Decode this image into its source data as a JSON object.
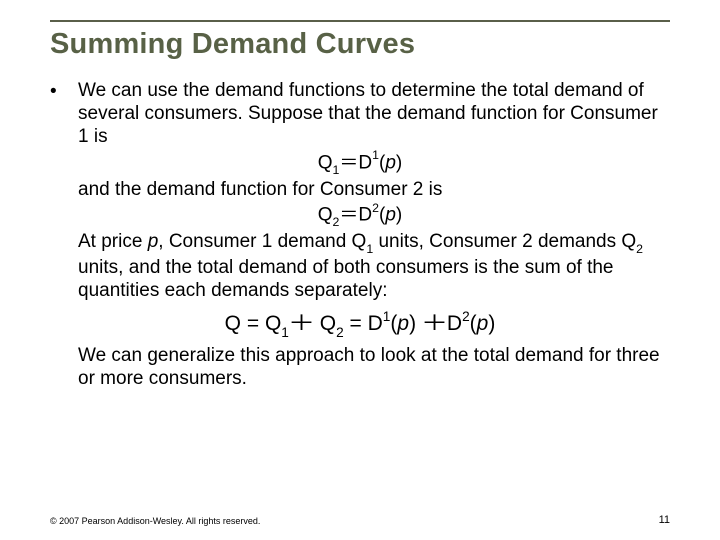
{
  "title": "Summing Demand Curves",
  "colors": {
    "title_color": "#586146",
    "rule_color": "#5a5f4a",
    "text_color": "#000000",
    "background": "#ffffff"
  },
  "typography": {
    "title_fontsize_pt": 22,
    "body_fontsize_pt": 14,
    "footer_fontsize_pt": 7
  },
  "bullet": "•",
  "p1": "We can use the demand functions to determine the total demand of several consumers. Suppose that the demand function for Consumer 1 is",
  "eq1": {
    "lhs_sym": "Q",
    "lhs_sub": "1",
    "eq_sign": "＝",
    "rhs_sym": "D",
    "rhs_sup": "1",
    "arg_open": "(",
    "arg_var": "p",
    "arg_close": ")"
  },
  "p2": "and the demand function for Consumer 2 is",
  "eq2": {
    "lhs_sym": "Q",
    "lhs_sub": "2",
    "eq_sign": "＝",
    "rhs_sym": "D",
    "rhs_sup": "2",
    "arg_open": "(",
    "arg_var": "p",
    "arg_close": ")"
  },
  "p3a": "At price ",
  "p3_pvar": "p",
  "p3b": ", Consumer 1 demand Q",
  "p3_sub1": "1",
  "p3c": " units, Consumer 2 demands Q",
  "p3_sub2": "2",
  "p3d": " units, and the total demand of both consumers is the sum of the quantities each demands separately:",
  "eq3": {
    "Q": "Q",
    "eq": "=",
    "Q1_sym": "Q",
    "Q1_sub": "1",
    "plus": "＋",
    "Q2_sym": "Q",
    "Q2_sub": "2",
    "D1_sym": "D",
    "D1_sup": "1",
    "D2_sym": "D",
    "D2_sup": "2",
    "arg_open": "(",
    "arg_var": "p",
    "arg_close": ")"
  },
  "p4": "We can generalize this approach to look at the total demand for three or more consumers.",
  "footer": {
    "copyright": "© 2007 Pearson Addison-Wesley. All rights reserved.",
    "page": "11"
  }
}
